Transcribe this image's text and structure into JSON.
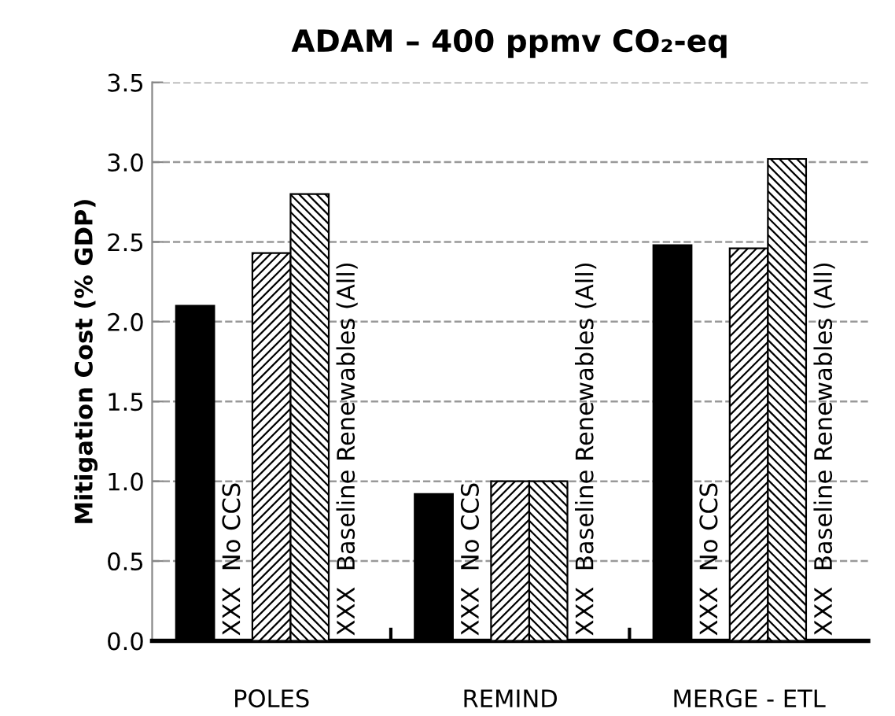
{
  "chart_data": {
    "type": "bar",
    "title": "ADAM – 400 ppmv CO₂-eq",
    "ylabel": "Mitigation Cost (% GDP)",
    "categories": [
      "POLES",
      "REMIND",
      "MERGE - ETL"
    ],
    "series": [
      {
        "color": "#000000",
        "values": [
          2.1,
          0.92,
          2.48
        ]
      },
      {
        "values": [
          null,
          null,
          null
        ],
        "value_labels": [
          "XXX  No CCS",
          "XXX  No CCS",
          "XXX  No CCS"
        ]
      },
      {
        "color": "#000000",
        "values": [
          2.43,
          1.0,
          2.46
        ]
      },
      {
        "color": "#000000",
        "values": [
          2.8,
          1.0,
          3.02
        ]
      },
      {
        "values": [
          null,
          null,
          null
        ],
        "value_labels": [
          "XXX  Baseline Renewables (All)",
          "XXX  Baseline Renewables (All)",
          "XXX  Baseline Renewables (All)"
        ]
      }
    ],
    "ylim": [
      0,
      3.5
    ],
    "yticks": [
      {
        "value": 0,
        "label": "0.0"
      },
      {
        "value": 0.5,
        "label": "0.5"
      },
      {
        "value": 1,
        "label": "1.0"
      },
      {
        "value": 1.5,
        "label": "1.5"
      },
      {
        "value": 2,
        "label": "2.0"
      },
      {
        "value": 2.5,
        "label": "2.5"
      },
      {
        "value": 3,
        "label": "3.0"
      },
      {
        "value": 3.5,
        "label": "3.5"
      }
    ],
    "grid": "y",
    "legend": false
  }
}
